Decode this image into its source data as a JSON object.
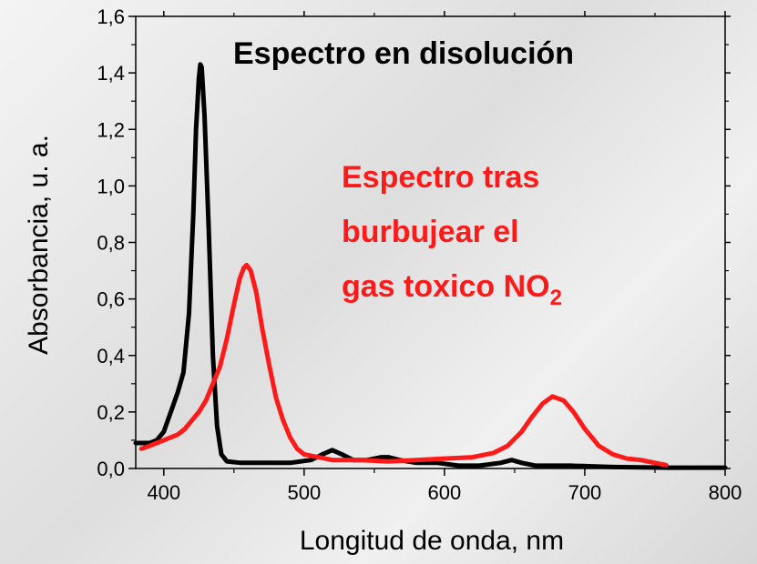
{
  "chart_data": {
    "type": "line",
    "xlabel": "Longitud de onda, nm",
    "ylabel": "Absorbancia, u. a.",
    "xlim": [
      380,
      800
    ],
    "ylim": [
      0,
      1.6
    ],
    "x_ticks": [
      "400",
      "500",
      "600",
      "700",
      "800"
    ],
    "y_ticks": [
      "0,0",
      "0,2",
      "0,4",
      "0,6",
      "0,8",
      "1,0",
      "1,2",
      "1,4",
      "1,6"
    ],
    "grid": false,
    "annotations": [
      {
        "lines": [
          "Espectro en disolución"
        ],
        "color": "#000000"
      },
      {
        "lines": [
          "Espectro tras",
          "burbujear el",
          "gas toxico NO"
        ],
        "subscript": "2",
        "color": "#ff1a1a"
      }
    ],
    "series": [
      {
        "color": "#000000",
        "points": [
          [
            380,
            0.09
          ],
          [
            385,
            0.09
          ],
          [
            390,
            0.09
          ],
          [
            395,
            0.1
          ],
          [
            400,
            0.13
          ],
          [
            405,
            0.2
          ],
          [
            410,
            0.27
          ],
          [
            414,
            0.34
          ],
          [
            418,
            0.55
          ],
          [
            421,
            0.9
          ],
          [
            423,
            1.2
          ],
          [
            425,
            1.38
          ],
          [
            426,
            1.43
          ],
          [
            427,
            1.42
          ],
          [
            429,
            1.25
          ],
          [
            432,
            0.85
          ],
          [
            435,
            0.4
          ],
          [
            438,
            0.15
          ],
          [
            441,
            0.05
          ],
          [
            445,
            0.025
          ],
          [
            455,
            0.02
          ],
          [
            470,
            0.02
          ],
          [
            490,
            0.02
          ],
          [
            505,
            0.03
          ],
          [
            513,
            0.05
          ],
          [
            520,
            0.065
          ],
          [
            527,
            0.05
          ],
          [
            535,
            0.03
          ],
          [
            545,
            0.03
          ],
          [
            555,
            0.04
          ],
          [
            560,
            0.04
          ],
          [
            568,
            0.03
          ],
          [
            580,
            0.02
          ],
          [
            595,
            0.02
          ],
          [
            610,
            0.01
          ],
          [
            625,
            0.01
          ],
          [
            640,
            0.02
          ],
          [
            648,
            0.03
          ],
          [
            655,
            0.02
          ],
          [
            665,
            0.01
          ],
          [
            690,
            0.01
          ],
          [
            720,
            0.005
          ],
          [
            760,
            0.003
          ],
          [
            800,
            0.003
          ]
        ]
      },
      {
        "color": "#ff1a1a",
        "points": [
          [
            384,
            0.07
          ],
          [
            390,
            0.08
          ],
          [
            395,
            0.09
          ],
          [
            400,
            0.1
          ],
          [
            405,
            0.11
          ],
          [
            410,
            0.12
          ],
          [
            415,
            0.14
          ],
          [
            420,
            0.17
          ],
          [
            425,
            0.2
          ],
          [
            430,
            0.24
          ],
          [
            435,
            0.3
          ],
          [
            440,
            0.36
          ],
          [
            445,
            0.46
          ],
          [
            450,
            0.58
          ],
          [
            454,
            0.67
          ],
          [
            457,
            0.71
          ],
          [
            459,
            0.72
          ],
          [
            462,
            0.7
          ],
          [
            466,
            0.62
          ],
          [
            470,
            0.5
          ],
          [
            475,
            0.37
          ],
          [
            480,
            0.25
          ],
          [
            485,
            0.17
          ],
          [
            490,
            0.11
          ],
          [
            495,
            0.07
          ],
          [
            500,
            0.05
          ],
          [
            510,
            0.04
          ],
          [
            520,
            0.03
          ],
          [
            540,
            0.03
          ],
          [
            560,
            0.025
          ],
          [
            580,
            0.03
          ],
          [
            600,
            0.035
          ],
          [
            620,
            0.04
          ],
          [
            635,
            0.055
          ],
          [
            645,
            0.08
          ],
          [
            655,
            0.13
          ],
          [
            662,
            0.18
          ],
          [
            670,
            0.23
          ],
          [
            677,
            0.255
          ],
          [
            685,
            0.24
          ],
          [
            692,
            0.2
          ],
          [
            700,
            0.14
          ],
          [
            710,
            0.08
          ],
          [
            720,
            0.05
          ],
          [
            730,
            0.035
          ],
          [
            740,
            0.03
          ],
          [
            750,
            0.02
          ],
          [
            758,
            0.012
          ]
        ]
      }
    ]
  }
}
